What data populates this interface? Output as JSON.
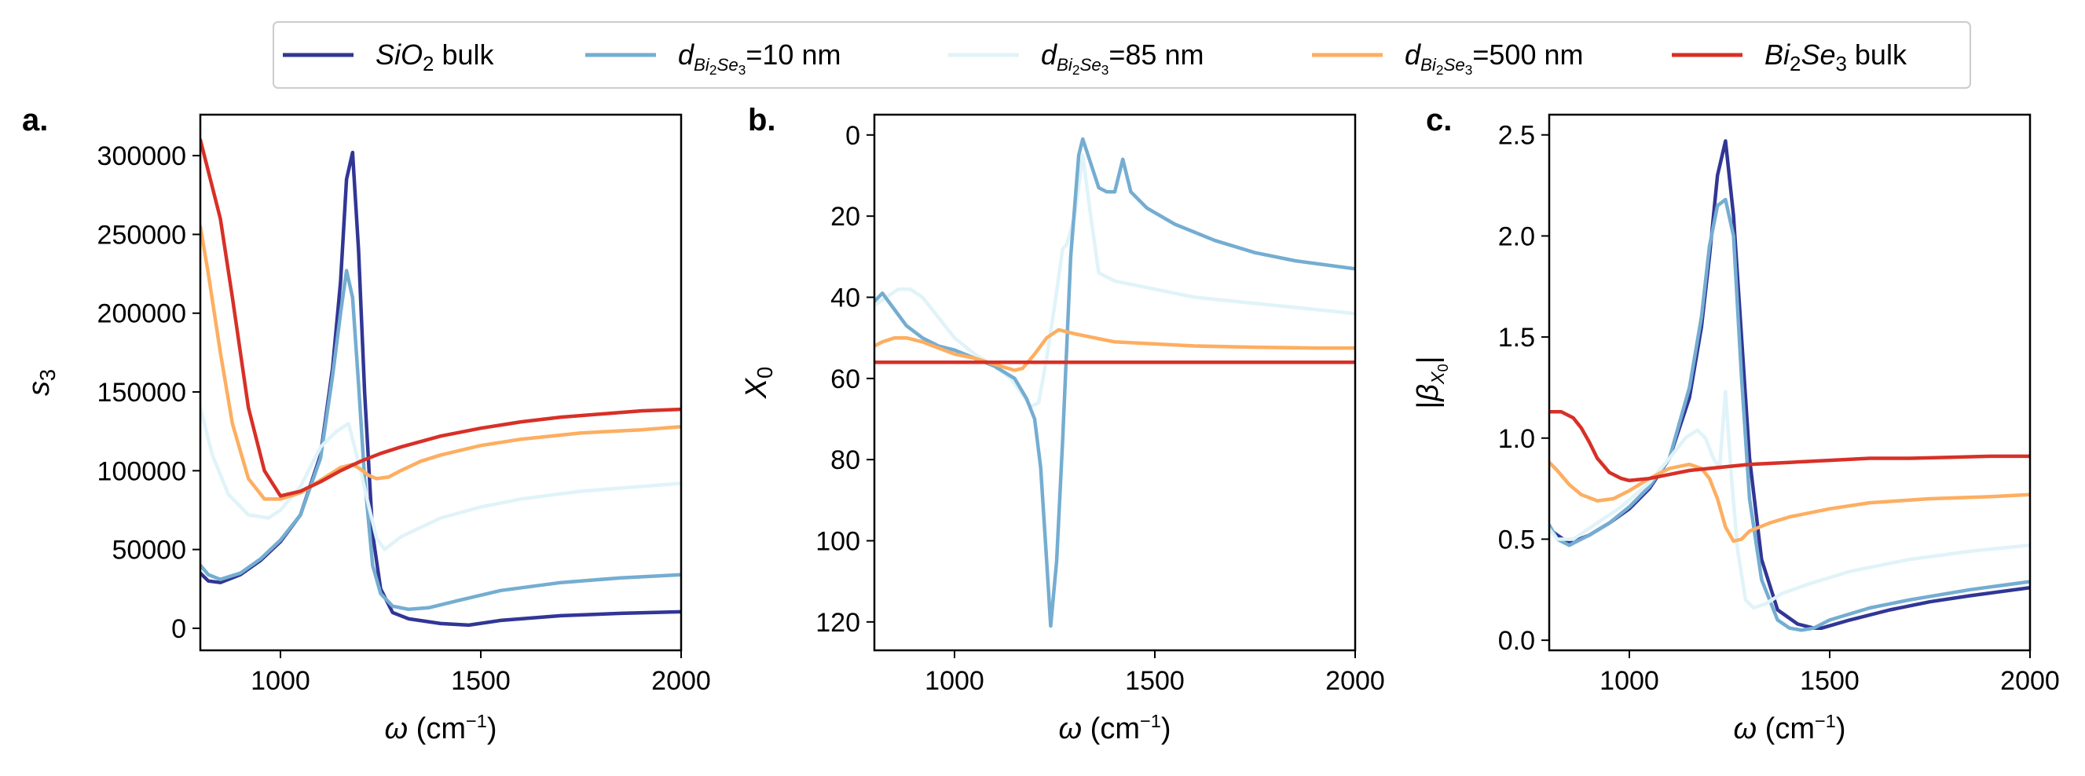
{
  "legend": {
    "location": "top-center",
    "entries": [
      {
        "id": "sio2",
        "parts": [
          {
            "t": "SiO",
            "s": "i"
          },
          {
            "t": "2",
            "s": "sub"
          },
          {
            "t": " bulk",
            "s": "n"
          }
        ],
        "color": "#313695"
      },
      {
        "id": "d10",
        "parts": [
          {
            "t": "d",
            "s": "i"
          },
          {
            "t": "Bi",
            "s": "subi"
          },
          {
            "t": "2",
            "s": "subsub"
          },
          {
            "t": "Se",
            "s": "subi"
          },
          {
            "t": "3",
            "s": "subsub"
          },
          {
            "t": "=10 nm",
            "s": "n"
          }
        ],
        "color": "#74add1"
      },
      {
        "id": "d85",
        "parts": [
          {
            "t": "d",
            "s": "i"
          },
          {
            "t": "Bi",
            "s": "subi"
          },
          {
            "t": "2",
            "s": "subsub"
          },
          {
            "t": "Se",
            "s": "subi"
          },
          {
            "t": "3",
            "s": "subsub"
          },
          {
            "t": "=85 nm",
            "s": "n"
          }
        ],
        "color": "#e0f3f8"
      },
      {
        "id": "d500",
        "parts": [
          {
            "t": "d",
            "s": "i"
          },
          {
            "t": "Bi",
            "s": "subi"
          },
          {
            "t": "2",
            "s": "subsub"
          },
          {
            "t": "Se",
            "s": "subi"
          },
          {
            "t": "3",
            "s": "subsub"
          },
          {
            "t": "=500 nm",
            "s": "n"
          }
        ],
        "color": "#fdae61"
      },
      {
        "id": "bise",
        "parts": [
          {
            "t": "Bi",
            "s": "i"
          },
          {
            "t": "2",
            "s": "sub"
          },
          {
            "t": "Se",
            "s": "i"
          },
          {
            "t": "3",
            "s": "sub"
          },
          {
            "t": " bulk",
            "s": "n"
          }
        ],
        "color": "#d73027"
      }
    ]
  },
  "chart_data": [
    {
      "type": "line",
      "panel_label": "a.",
      "xlabel_parts": [
        {
          "t": "ω",
          "s": "i"
        },
        {
          "t": " (cm",
          "s": "n"
        },
        {
          "t": "−1",
          "s": "sup"
        },
        {
          "t": ")",
          "s": "n"
        }
      ],
      "ylabel_parts": [
        {
          "t": "s",
          "s": "i"
        },
        {
          "t": "3",
          "s": "sub"
        }
      ],
      "xlim": [
        800,
        2000
      ],
      "ylim": [
        -14000,
        326000
      ],
      "y_inverted": false,
      "xticks": [
        1000,
        1500,
        2000
      ],
      "yticks": [
        0,
        50000,
        100000,
        150000,
        200000,
        250000,
        300000
      ],
      "series": [
        {
          "name": "SiO2 bulk",
          "color": "#313695",
          "x": [
            800,
            820,
            850,
            900,
            950,
            1000,
            1050,
            1100,
            1130,
            1150,
            1165,
            1180,
            1195,
            1210,
            1230,
            1250,
            1280,
            1320,
            1400,
            1470,
            1550,
            1700,
            1850,
            2000
          ],
          "y": [
            35000,
            30000,
            29000,
            34000,
            43000,
            55000,
            72000,
            110000,
            165000,
            220000,
            285000,
            302000,
            240000,
            150000,
            60000,
            25000,
            10000,
            6000,
            3000,
            2000,
            5000,
            8000,
            9500,
            10500
          ]
        },
        {
          "name": "d=10 nm",
          "color": "#74add1",
          "x": [
            800,
            820,
            850,
            900,
            950,
            1000,
            1050,
            1100,
            1130,
            1150,
            1165,
            1180,
            1195,
            1210,
            1230,
            1250,
            1280,
            1320,
            1370,
            1450,
            1550,
            1700,
            1850,
            2000
          ],
          "y": [
            40000,
            34000,
            31000,
            35000,
            44000,
            56000,
            72000,
            108000,
            160000,
            200000,
            227000,
            210000,
            155000,
            95000,
            40000,
            22000,
            14000,
            12000,
            13000,
            18000,
            24000,
            29000,
            32000,
            34000
          ]
        },
        {
          "name": "d=85 nm",
          "color": "#e0f3f8",
          "x": [
            800,
            830,
            870,
            920,
            970,
            1000,
            1050,
            1100,
            1140,
            1170,
            1180,
            1200,
            1220,
            1240,
            1260,
            1300,
            1400,
            1500,
            1600,
            1750,
            1900,
            2000
          ],
          "y": [
            140000,
            110000,
            85000,
            72000,
            70000,
            75000,
            90000,
            115000,
            125000,
            130000,
            120000,
            100000,
            78000,
            57000,
            50000,
            58000,
            70000,
            77000,
            82000,
            87000,
            90000,
            92000
          ]
        },
        {
          "name": "d=500 nm",
          "color": "#fdae61",
          "x": [
            800,
            820,
            850,
            880,
            920,
            960,
            1000,
            1050,
            1100,
            1150,
            1180,
            1200,
            1220,
            1240,
            1270,
            1300,
            1350,
            1400,
            1500,
            1600,
            1750,
            1900,
            2000
          ],
          "y": [
            255000,
            225000,
            175000,
            130000,
            95000,
            82000,
            82000,
            86000,
            94000,
            102000,
            104000,
            101000,
            97000,
            95000,
            96000,
            100000,
            106000,
            110000,
            116000,
            120000,
            124000,
            126000,
            128000
          ]
        },
        {
          "name": "Bi2Se3 bulk",
          "color": "#d73027",
          "x": [
            800,
            820,
            850,
            880,
            920,
            960,
            1000,
            1050,
            1100,
            1150,
            1200,
            1250,
            1300,
            1400,
            1500,
            1600,
            1700,
            1800,
            1900,
            2000
          ],
          "y": [
            310000,
            290000,
            260000,
            210000,
            140000,
            100000,
            84000,
            87000,
            93000,
            100000,
            106000,
            111000,
            115000,
            122000,
            127000,
            131000,
            134000,
            136000,
            138000,
            139000
          ]
        }
      ]
    },
    {
      "type": "line",
      "panel_label": "b.",
      "xlabel_parts": [
        {
          "t": "ω",
          "s": "i"
        },
        {
          "t": " (cm",
          "s": "n"
        },
        {
          "t": "−1",
          "s": "sup"
        },
        {
          "t": ")",
          "s": "n"
        }
      ],
      "ylabel_parts": [
        {
          "t": "X",
          "s": "i"
        },
        {
          "t": "0",
          "s": "sub"
        }
      ],
      "xlim": [
        800,
        2000
      ],
      "ylim": [
        -5,
        127
      ],
      "y_inverted": true,
      "xticks": [
        1000,
        1500,
        2000
      ],
      "yticks": [
        0,
        20,
        40,
        60,
        80,
        100,
        120
      ],
      "series": [
        {
          "name": "d=85 nm",
          "color": "#e0f3f8",
          "x": [
            800,
            830,
            860,
            890,
            920,
            960,
            1000,
            1050,
            1100,
            1140,
            1170,
            1190,
            1210,
            1230,
            1250,
            1270,
            1280,
            1300,
            1320,
            1340,
            1360,
            1400,
            1500,
            1600,
            1750,
            1900,
            2000
          ],
          "y": [
            42,
            40,
            38,
            38,
            40,
            45,
            50,
            54,
            57,
            60,
            64,
            67,
            66,
            55,
            42,
            28,
            27,
            20,
            5,
            20,
            34,
            36,
            38,
            40,
            41.5,
            43,
            44
          ]
        },
        {
          "name": "d=10 nm",
          "color": "#74add1",
          "x": [
            800,
            820,
            850,
            880,
            920,
            960,
            1000,
            1050,
            1100,
            1150,
            1180,
            1200,
            1215,
            1230,
            1240,
            1255,
            1270,
            1290,
            1310,
            1320,
            1340,
            1360,
            1380,
            1400,
            1420,
            1440,
            1480,
            1550,
            1650,
            1750,
            1850,
            2000
          ],
          "y": [
            41,
            39,
            43,
            47,
            50,
            52,
            53,
            55,
            57,
            60,
            65,
            70,
            82,
            105,
            121,
            105,
            75,
            30,
            5,
            1,
            7,
            13,
            14,
            14,
            6,
            14,
            18,
            22,
            26,
            29,
            31,
            33
          ]
        },
        {
          "name": "d=500 nm",
          "color": "#fdae61",
          "x": [
            800,
            820,
            850,
            880,
            920,
            960,
            1000,
            1050,
            1100,
            1150,
            1170,
            1200,
            1230,
            1260,
            1280,
            1300,
            1350,
            1400,
            1500,
            1600,
            1750,
            1900,
            2000
          ],
          "y": [
            52,
            51,
            50,
            50,
            51,
            52.5,
            54,
            55,
            56.5,
            58,
            57.5,
            54,
            50,
            48,
            48.5,
            49,
            50,
            51,
            51.5,
            52,
            52.3,
            52.5,
            52.5
          ]
        },
        {
          "name": "Bi2Se3 bulk",
          "color": "#d73027",
          "x": [
            800,
            2000
          ],
          "y": [
            56,
            56
          ]
        }
      ]
    },
    {
      "type": "line",
      "panel_label": "c.",
      "xlabel_parts": [
        {
          "t": "ω",
          "s": "i"
        },
        {
          "t": " (cm",
          "s": "n"
        },
        {
          "t": "−1",
          "s": "sup"
        },
        {
          "t": ")",
          "s": "n"
        }
      ],
      "ylabel_parts": [
        {
          "t": "|",
          "s": "n"
        },
        {
          "t": "β",
          "s": "i"
        },
        {
          "t": "X",
          "s": "subi"
        },
        {
          "t": "0",
          "s": "subsub"
        },
        {
          "t": "|",
          "s": "n"
        }
      ],
      "xlim": [
        800,
        2000
      ],
      "ylim": [
        -0.05,
        2.6
      ],
      "y_inverted": false,
      "xticks": [
        1000,
        1500,
        2000
      ],
      "yticks": [
        0.0,
        0.5,
        1.0,
        1.5,
        2.0,
        2.5
      ],
      "series": [
        {
          "name": "SiO2 bulk",
          "color": "#313695",
          "x": [
            800,
            820,
            850,
            900,
            950,
            1000,
            1050,
            1100,
            1150,
            1180,
            1200,
            1220,
            1240,
            1260,
            1280,
            1300,
            1330,
            1370,
            1420,
            1460,
            1480,
            1550,
            1650,
            1750,
            1850,
            2000
          ],
          "y": [
            0.55,
            0.52,
            0.48,
            0.52,
            0.58,
            0.65,
            0.75,
            0.9,
            1.2,
            1.55,
            1.9,
            2.3,
            2.47,
            2.1,
            1.5,
            0.9,
            0.4,
            0.15,
            0.08,
            0.06,
            0.06,
            0.1,
            0.15,
            0.19,
            0.22,
            0.26
          ]
        },
        {
          "name": "d=10 nm",
          "color": "#74add1",
          "x": [
            800,
            820,
            850,
            900,
            950,
            1000,
            1050,
            1100,
            1150,
            1180,
            1200,
            1220,
            1240,
            1260,
            1280,
            1300,
            1330,
            1370,
            1400,
            1430,
            1460,
            1500,
            1600,
            1700,
            1850,
            2000
          ],
          "y": [
            0.57,
            0.5,
            0.47,
            0.52,
            0.58,
            0.66,
            0.76,
            0.9,
            1.25,
            1.6,
            1.95,
            2.15,
            2.18,
            2.0,
            1.3,
            0.7,
            0.3,
            0.1,
            0.06,
            0.05,
            0.06,
            0.1,
            0.16,
            0.2,
            0.25,
            0.29
          ]
        },
        {
          "name": "d=85 nm",
          "color": "#e0f3f8",
          "x": [
            800,
            820,
            860,
            920,
            980,
            1050,
            1100,
            1140,
            1170,
            1190,
            1210,
            1225,
            1240,
            1255,
            1270,
            1290,
            1310,
            1340,
            1380,
            1450,
            1550,
            1700,
            1850,
            2000
          ],
          "y": [
            0.55,
            0.5,
            0.5,
            0.58,
            0.66,
            0.78,
            0.9,
            1.0,
            1.04,
            1.0,
            0.9,
            0.85,
            1.23,
            0.8,
            0.45,
            0.2,
            0.16,
            0.18,
            0.23,
            0.28,
            0.34,
            0.4,
            0.44,
            0.47
          ]
        },
        {
          "name": "d=500 nm",
          "color": "#fdae61",
          "x": [
            800,
            820,
            850,
            880,
            920,
            960,
            1000,
            1050,
            1100,
            1150,
            1180,
            1200,
            1220,
            1240,
            1260,
            1280,
            1300,
            1350,
            1400,
            1500,
            1600,
            1750,
            1900,
            2000
          ],
          "y": [
            0.88,
            0.84,
            0.77,
            0.72,
            0.69,
            0.7,
            0.74,
            0.8,
            0.85,
            0.87,
            0.85,
            0.8,
            0.7,
            0.56,
            0.49,
            0.5,
            0.54,
            0.58,
            0.61,
            0.65,
            0.68,
            0.7,
            0.71,
            0.72
          ]
        },
        {
          "name": "Bi2Se3 bulk",
          "color": "#d73027",
          "x": [
            800,
            830,
            860,
            880,
            900,
            920,
            950,
            980,
            1000,
            1050,
            1100,
            1150,
            1200,
            1300,
            1400,
            1500,
            1600,
            1700,
            1800,
            1900,
            2000
          ],
          "y": [
            1.13,
            1.13,
            1.1,
            1.05,
            0.98,
            0.9,
            0.83,
            0.8,
            0.79,
            0.8,
            0.82,
            0.84,
            0.85,
            0.87,
            0.88,
            0.89,
            0.9,
            0.9,
            0.905,
            0.91,
            0.91
          ]
        }
      ]
    }
  ]
}
